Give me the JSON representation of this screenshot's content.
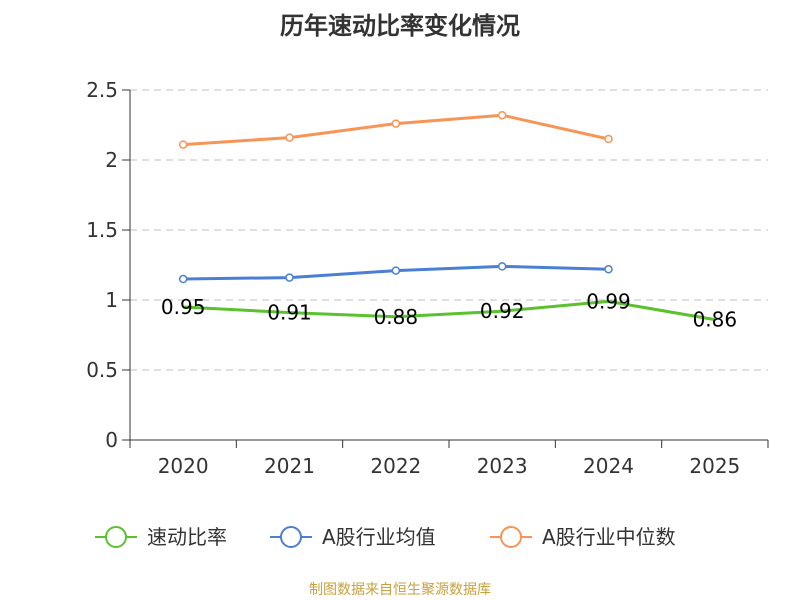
{
  "chart_data": {
    "type": "line",
    "title": "历年速动比率变化情况",
    "categories": [
      "2020",
      "2021",
      "2022",
      "2023",
      "2024",
      "2025"
    ],
    "ylim": [
      0,
      2.5
    ],
    "yticks": [
      "0",
      "0.5",
      "1",
      "1.5",
      "2",
      "2.5"
    ],
    "ytick_values": [
      0,
      0.5,
      1,
      1.5,
      2,
      2.5
    ],
    "grid": true,
    "legend_position": "bottom",
    "series": [
      {
        "name": "速动比率",
        "color": "#5ac12f",
        "values": [
          0.95,
          0.91,
          0.88,
          0.92,
          0.99,
          0.86
        ],
        "labels": [
          "0.95",
          "0.91",
          "0.88",
          "0.92",
          "0.99",
          "0.86"
        ],
        "show_labels": true
      },
      {
        "name": "A股行业均值",
        "color": "#4a7fd4",
        "values": [
          1.15,
          1.16,
          1.21,
          1.24,
          1.22,
          null
        ],
        "show_labels": false
      },
      {
        "name": "A股行业中位数",
        "color": "#f69556",
        "values": [
          2.11,
          2.16,
          2.26,
          2.32,
          2.15,
          null
        ],
        "show_labels": false
      }
    ]
  },
  "source_note": "制图数据来自恒生聚源数据库"
}
